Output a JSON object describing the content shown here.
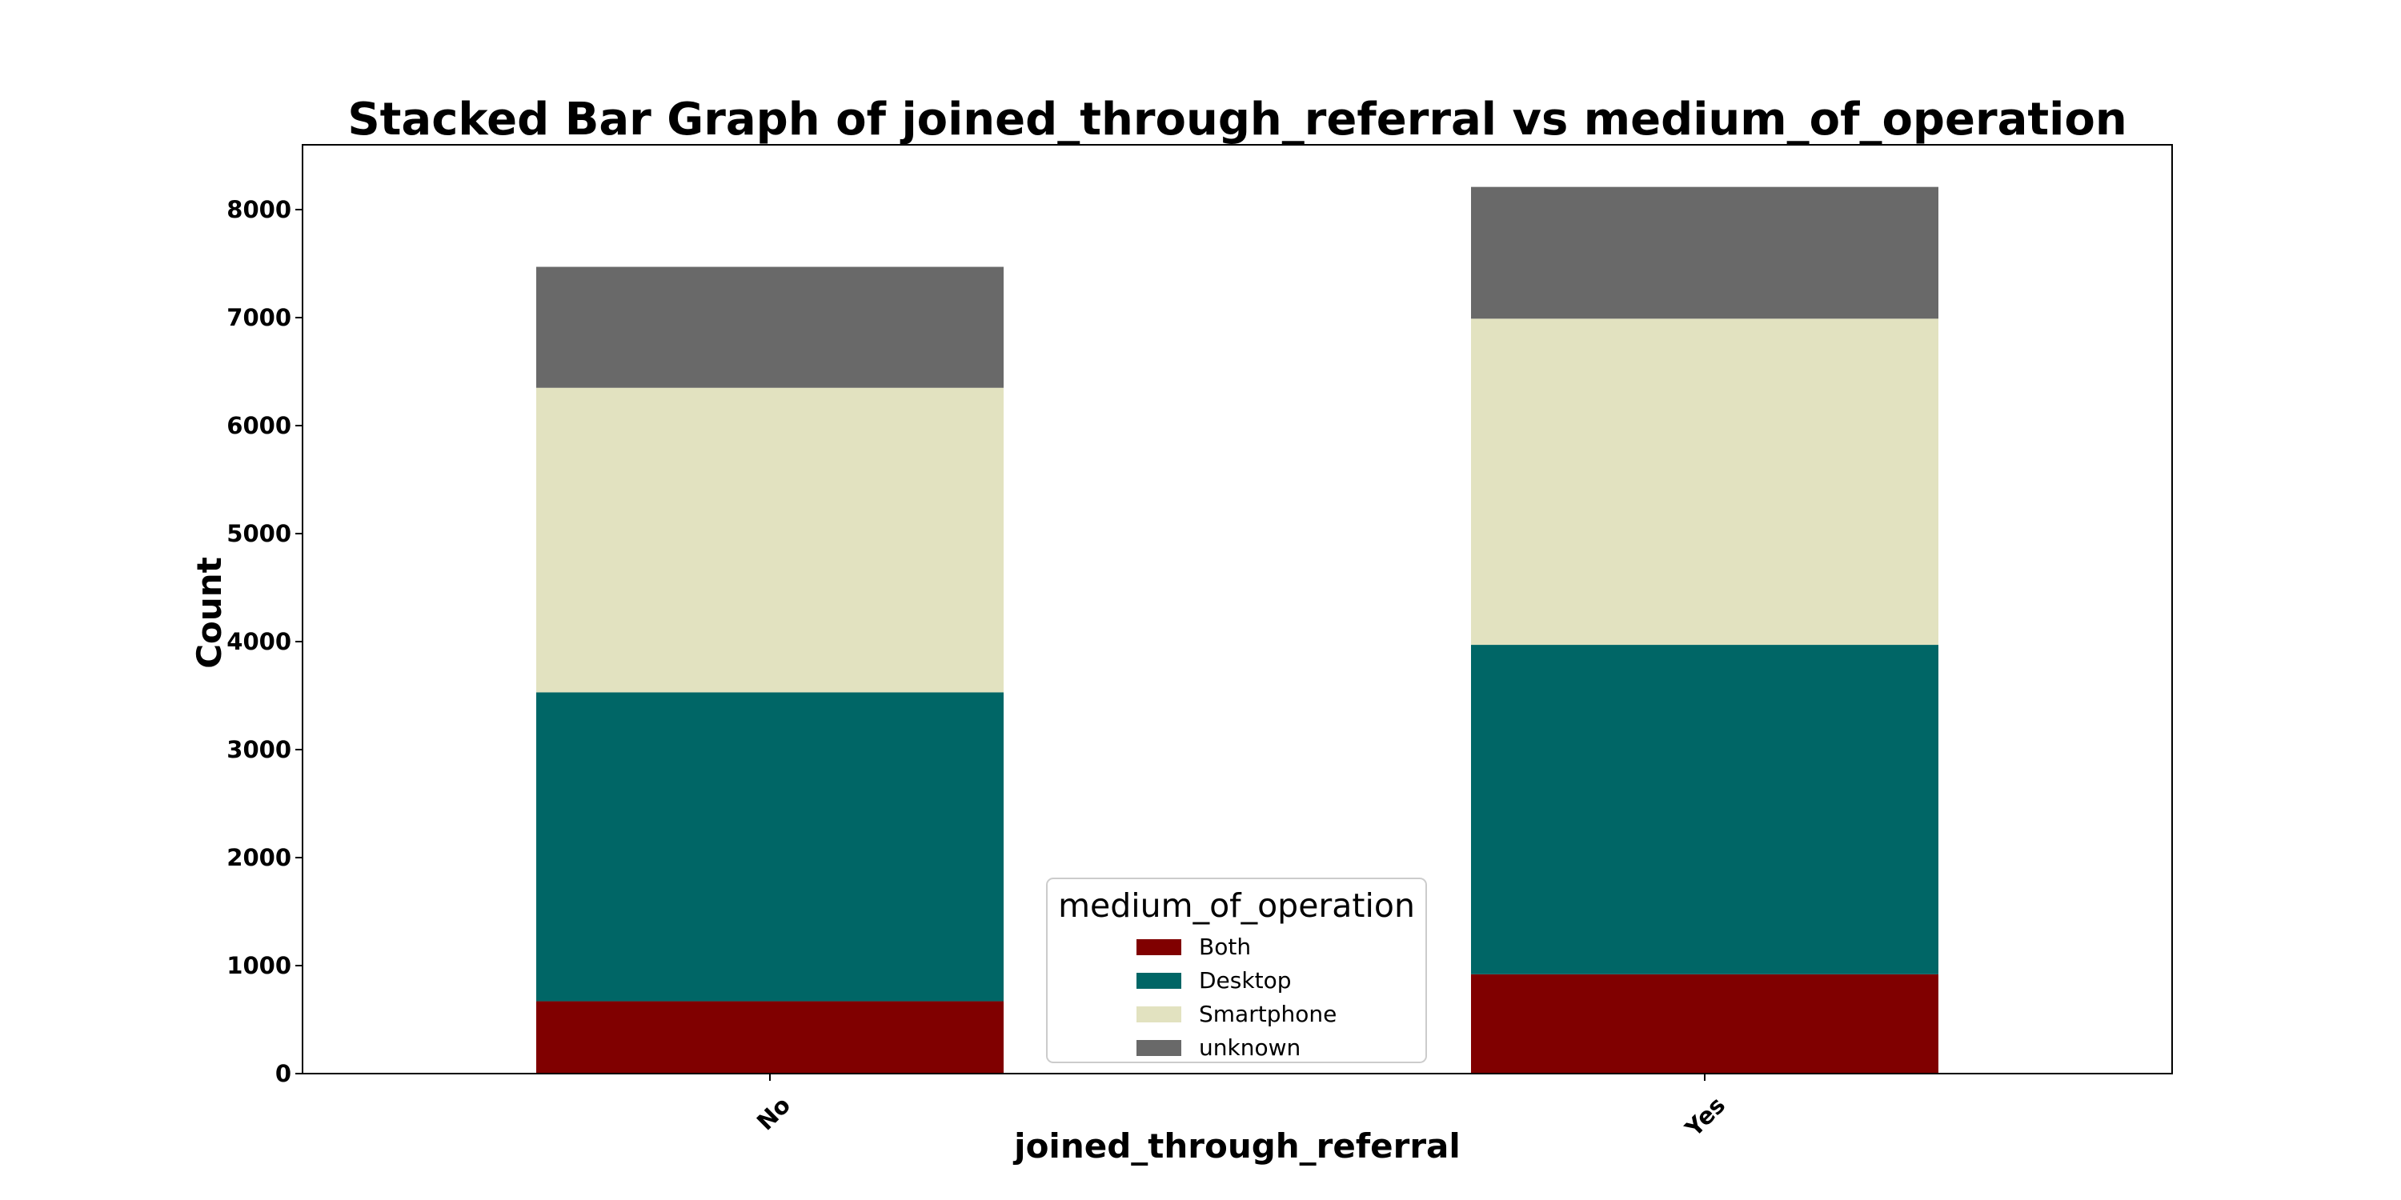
{
  "chart_data": {
    "type": "bar",
    "stacked": true,
    "title": "Stacked Bar Graph of joined_through_referral vs medium_of_operation",
    "xlabel": "joined_through_referral",
    "ylabel": "Count",
    "categories": [
      "No",
      "Yes"
    ],
    "ylim": [
      0,
      8600
    ],
    "yticks": [
      0,
      1000,
      2000,
      3000,
      4000,
      5000,
      6000,
      7000,
      8000
    ],
    "grid": false,
    "legend": {
      "title": "medium_of_operation",
      "placement": "lower-center"
    },
    "series": [
      {
        "name": "Both",
        "color": "#800000",
        "values": [
          670,
          920
        ]
      },
      {
        "name": "Desktop",
        "color": "#006666",
        "values": [
          2860,
          3050
        ]
      },
      {
        "name": "Smartphone",
        "color": "#E2E2C0",
        "values": [
          2820,
          3020
        ]
      },
      {
        "name": "unknown",
        "color": "#696969",
        "values": [
          1120,
          1220
        ]
      }
    ]
  }
}
